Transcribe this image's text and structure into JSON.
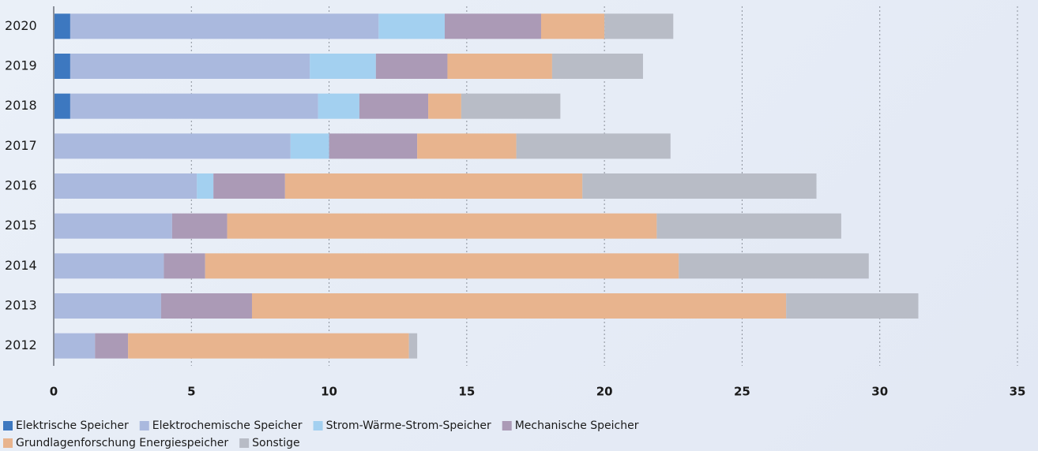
{
  "chart_data": {
    "type": "bar",
    "orientation": "horizontal",
    "stacked": true,
    "categories": [
      "2020",
      "2019",
      "2018",
      "2017",
      "2016",
      "2015",
      "2014",
      "2013",
      "2012"
    ],
    "series": [
      {
        "name": "Elektrische Speicher",
        "color": "#3d78c0",
        "values": [
          0.6,
          0.6,
          0.6,
          0,
          0,
          0,
          0,
          0,
          0
        ]
      },
      {
        "name": "Elektrochemische Speicher",
        "color": "#aab9de",
        "values": [
          11.2,
          8.7,
          9.0,
          8.6,
          5.2,
          4.3,
          4.0,
          3.9,
          1.5
        ]
      },
      {
        "name": "Strom-Wärme-Strom-Speicher",
        "color": "#a3d0f0",
        "values": [
          2.4,
          2.4,
          1.5,
          1.4,
          0.6,
          0,
          0,
          0,
          0
        ]
      },
      {
        "name": "Mechanische Speicher",
        "color": "#ab9ab6",
        "values": [
          3.5,
          2.6,
          2.5,
          3.2,
          2.6,
          2.0,
          1.5,
          3.3,
          1.2
        ]
      },
      {
        "name": "Grundlagenforschung Energiespeicher",
        "color": "#e8b48e",
        "values": [
          2.3,
          3.8,
          1.2,
          3.6,
          10.8,
          15.6,
          17.2,
          19.4,
          10.2
        ]
      },
      {
        "name": "Sonstige",
        "color": "#b8bcc6",
        "values": [
          2.5,
          3.3,
          3.6,
          5.6,
          8.5,
          6.7,
          6.9,
          4.8,
          0.3
        ]
      }
    ],
    "xlim": [
      0,
      35
    ],
    "xticks": [
      0,
      5,
      10,
      15,
      20,
      25,
      30,
      35
    ],
    "grid": true
  }
}
